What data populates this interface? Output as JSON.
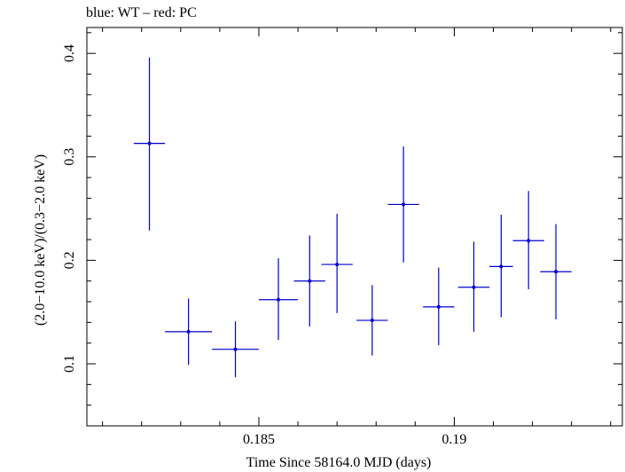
{
  "header": {
    "text": "blue: WT – red: PC"
  },
  "chart_data": {
    "type": "scatter",
    "title": "blue: WT – red: PC",
    "xlabel": "Time Since 58164.0 MJD (days)",
    "ylabel": "(2.0−10.0 keV)/(0.3−2.0 keV)",
    "xlim": [
      0.1806,
      0.1943
    ],
    "ylim": [
      0.04,
      0.425
    ],
    "x_ticks": [
      0.185,
      0.19
    ],
    "x_tick_labels": [
      "0.185",
      "0.19"
    ],
    "y_ticks": [
      0.1,
      0.2,
      0.3,
      0.4
    ],
    "y_tick_labels": [
      "0.1",
      "0.2",
      "0.3",
      "0.4"
    ],
    "grid": false,
    "legend": "none",
    "colors": {
      "series": "#0000d0",
      "axes": "#000000"
    },
    "series": [
      {
        "x": [
          0.1822,
          0.1832,
          0.1844,
          0.1855,
          0.1863,
          0.187,
          0.1879,
          0.1887,
          0.1896,
          0.1905,
          0.1912,
          0.1919,
          0.1926
        ],
        "xerr": [
          0.0004,
          0.0006,
          0.0006,
          0.0005,
          0.0004,
          0.0004,
          0.0004,
          0.0004,
          0.0004,
          0.0004,
          0.0003,
          0.0004,
          0.0004
        ],
        "y": [
          0.313,
          0.131,
          0.114,
          0.162,
          0.18,
          0.196,
          0.142,
          0.254,
          0.155,
          0.174,
          0.194,
          0.219,
          0.189
        ],
        "ylo": [
          0.229,
          0.099,
          0.087,
          0.123,
          0.136,
          0.149,
          0.108,
          0.198,
          0.118,
          0.131,
          0.145,
          0.172,
          0.143
        ],
        "yhi": [
          0.396,
          0.163,
          0.141,
          0.202,
          0.224,
          0.245,
          0.176,
          0.31,
          0.193,
          0.218,
          0.244,
          0.267,
          0.235
        ]
      }
    ]
  }
}
